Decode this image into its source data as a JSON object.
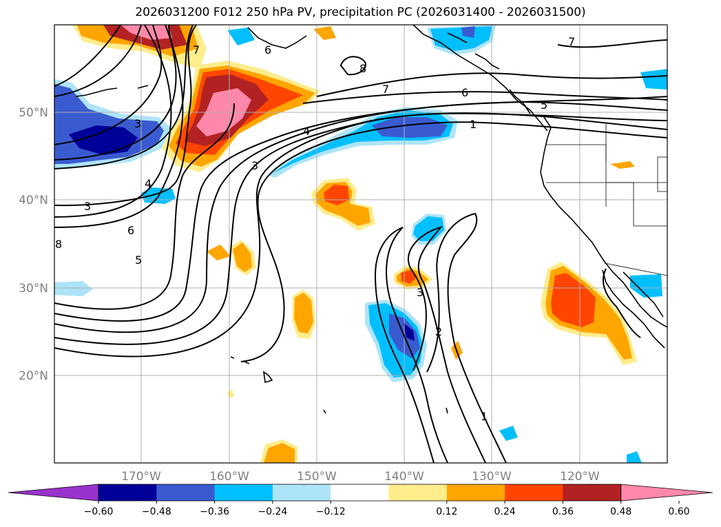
{
  "title": "2026031200 F012 250 hPa PV, precipitation PC (2026031400 - 2026031500)",
  "map": {
    "lat_ticks": [
      "50°N",
      "40°N",
      "30°N",
      "20°N"
    ],
    "lon_ticks": [
      "170°W",
      "160°W",
      "150°W",
      "140°W",
      "130°W",
      "120°W"
    ]
  },
  "contour_labels": [
    "7",
    "6",
    "5",
    "4",
    "3",
    "2",
    "1",
    "3",
    "4",
    "6",
    "5",
    "7",
    "6",
    "5",
    "1",
    "3",
    "2",
    "1",
    "4",
    "7",
    "6",
    "8",
    "3",
    "8"
  ],
  "colorbar": {
    "colors": [
      "#9933cc",
      "#000099",
      "#3a5bd0",
      "#00bfff",
      "#aee4f8",
      "#ffffff",
      "#ffec8b",
      "#ffa500",
      "#ff4500",
      "#b22222",
      "#ff88aa"
    ],
    "tick_labels": [
      "−0.60",
      "−0.48",
      "−0.36",
      "−0.24",
      "−0.12",
      "0.12",
      "0.24",
      "0.36",
      "0.48",
      "0.60"
    ]
  }
}
